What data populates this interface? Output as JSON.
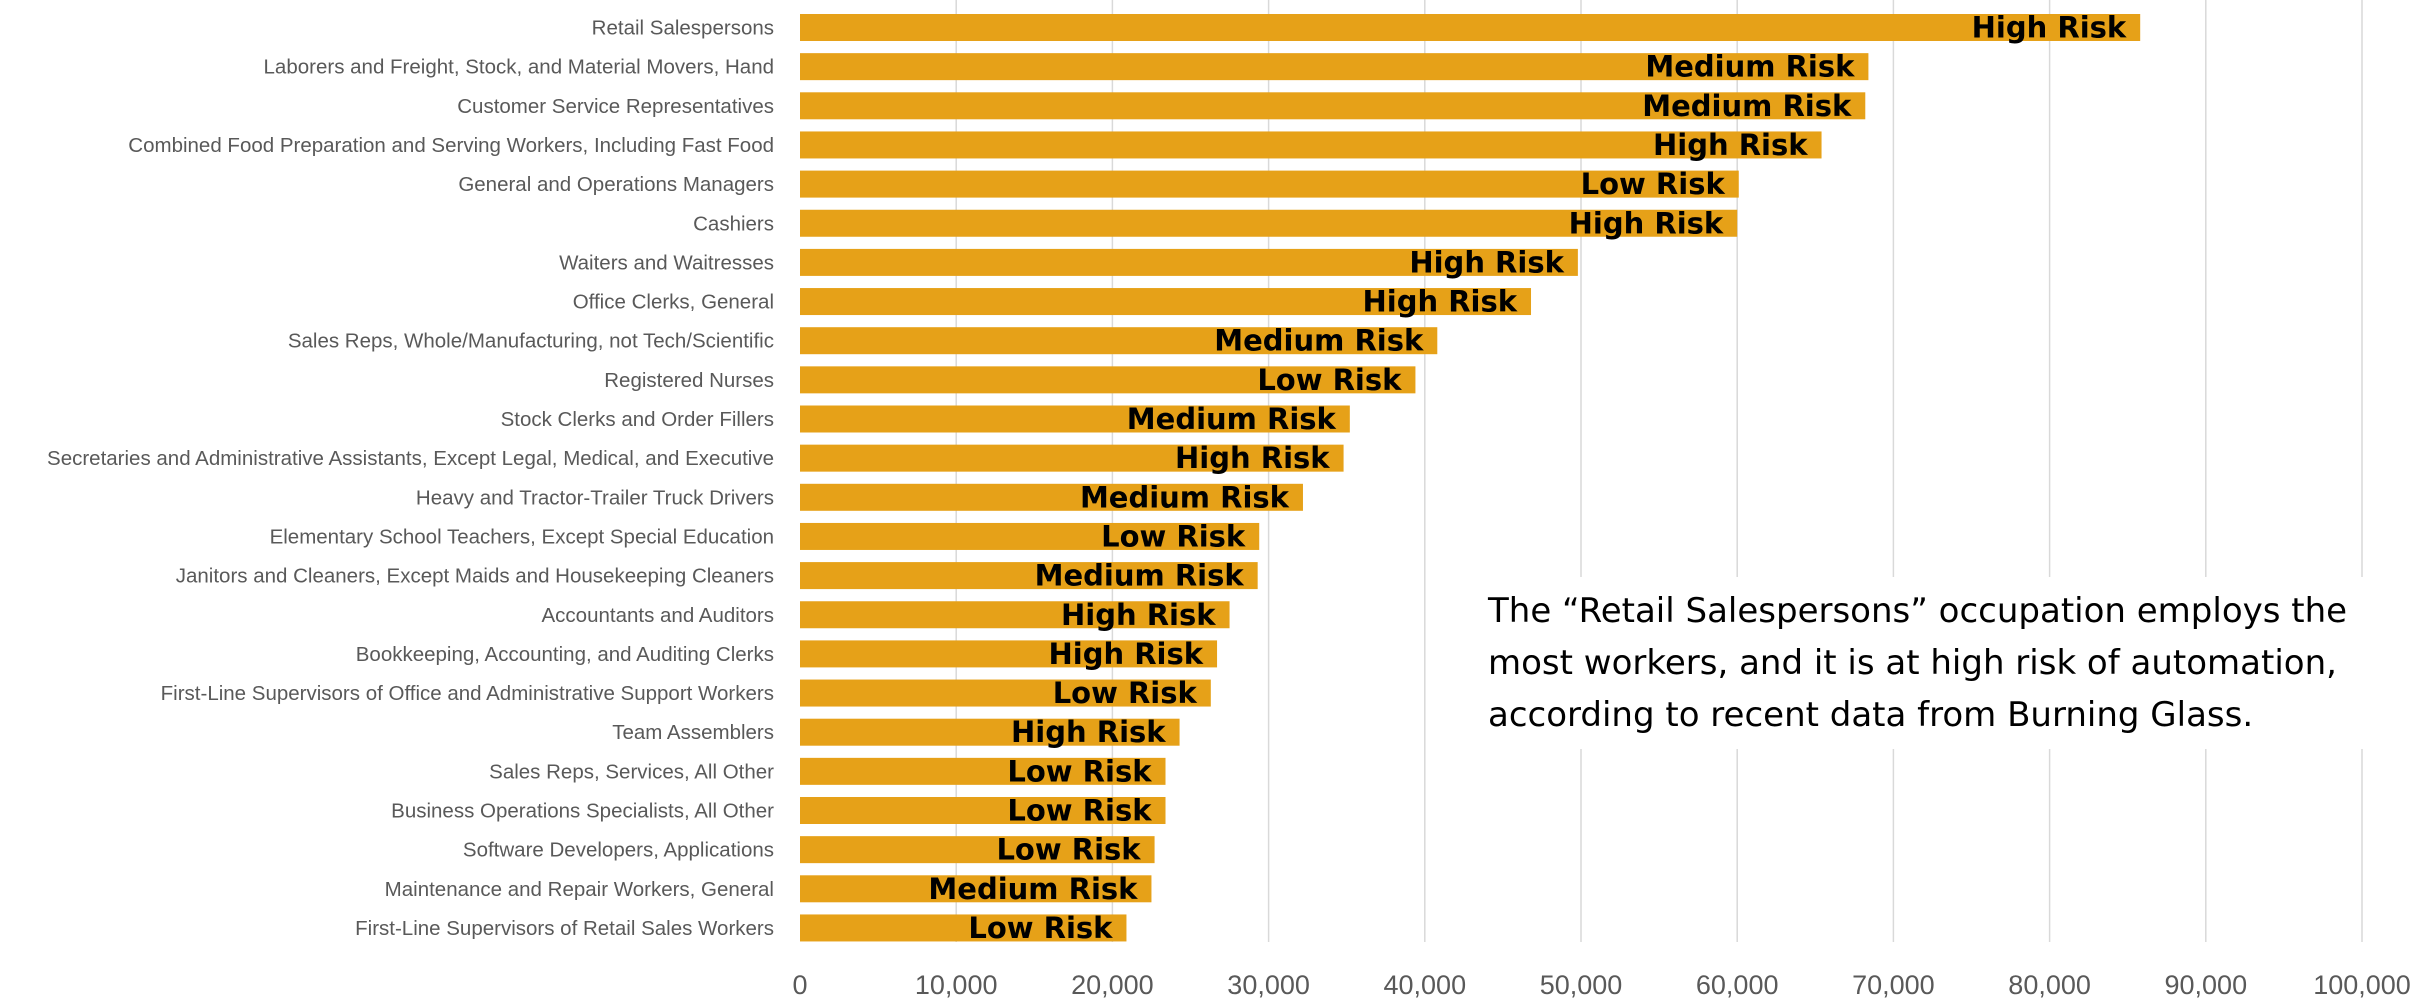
{
  "chart_data": {
    "type": "bar",
    "orientation": "horizontal",
    "categories": [
      "Retail Salespersons",
      "Laborers and Freight, Stock, and Material Movers, Hand",
      "Customer Service Representatives",
      "Combined Food Preparation and Serving Workers, Including Fast Food",
      "General and Operations Managers",
      "Cashiers",
      "Waiters and Waitresses",
      "Office Clerks, General",
      "Sales Reps, Whole/Manufacturing, not Tech/Scientific",
      "Registered Nurses",
      "Stock Clerks and Order Fillers",
      "Secretaries and Administrative Assistants, Except Legal, Medical, and Executive",
      "Heavy and Tractor-Trailer Truck Drivers",
      "Elementary School Teachers, Except Special Education",
      "Janitors and Cleaners, Except Maids and Housekeeping Cleaners",
      "Accountants and Auditors",
      "Bookkeeping, Accounting, and Auditing Clerks",
      "First-Line Supervisors of Office and Administrative Support Workers",
      "Team Assemblers",
      "Sales Reps, Services, All Other",
      "Business Operations Specialists, All Other",
      "Software Developers, Applications",
      "Maintenance and Repair Workers, General",
      "First-Line Supervisors of Retail Sales Workers"
    ],
    "values": [
      85800,
      68400,
      68200,
      65400,
      60100,
      60000,
      49800,
      46800,
      40800,
      39400,
      35200,
      34800,
      32200,
      29400,
      29300,
      27500,
      26700,
      26300,
      24300,
      23400,
      23400,
      22700,
      22500,
      20900
    ],
    "data_labels": [
      "High Risk",
      "Medium Risk",
      "Medium Risk",
      "High Risk",
      "Low Risk",
      "High Risk",
      "High Risk",
      "High Risk",
      "Medium Risk",
      "Low Risk",
      "Medium Risk",
      "High Risk",
      "Medium Risk",
      "Low Risk",
      "Medium Risk",
      "High Risk",
      "High Risk",
      "Low Risk",
      "High Risk",
      "Low Risk",
      "Low Risk",
      "Low Risk",
      "Medium Risk",
      "Low Risk"
    ],
    "xlim": [
      0,
      100000
    ],
    "x_ticks": [
      0,
      10000,
      20000,
      30000,
      40000,
      50000,
      60000,
      70000,
      80000,
      90000,
      100000
    ],
    "x_tick_labels": [
      "0",
      "10,000",
      "20,000",
      "30,000",
      "40,000",
      "50,000",
      "60,000",
      "70,000",
      "80,000",
      "90,000",
      "100,000"
    ],
    "grid": "vertical",
    "bar_color": "#E6A118",
    "grid_color": "#D9D9D9"
  },
  "annotation": {
    "text": "The “Retail Salespersons” occupation employs the most workers, and it is at high risk of automation, according to recent data from Burning Glass."
  }
}
